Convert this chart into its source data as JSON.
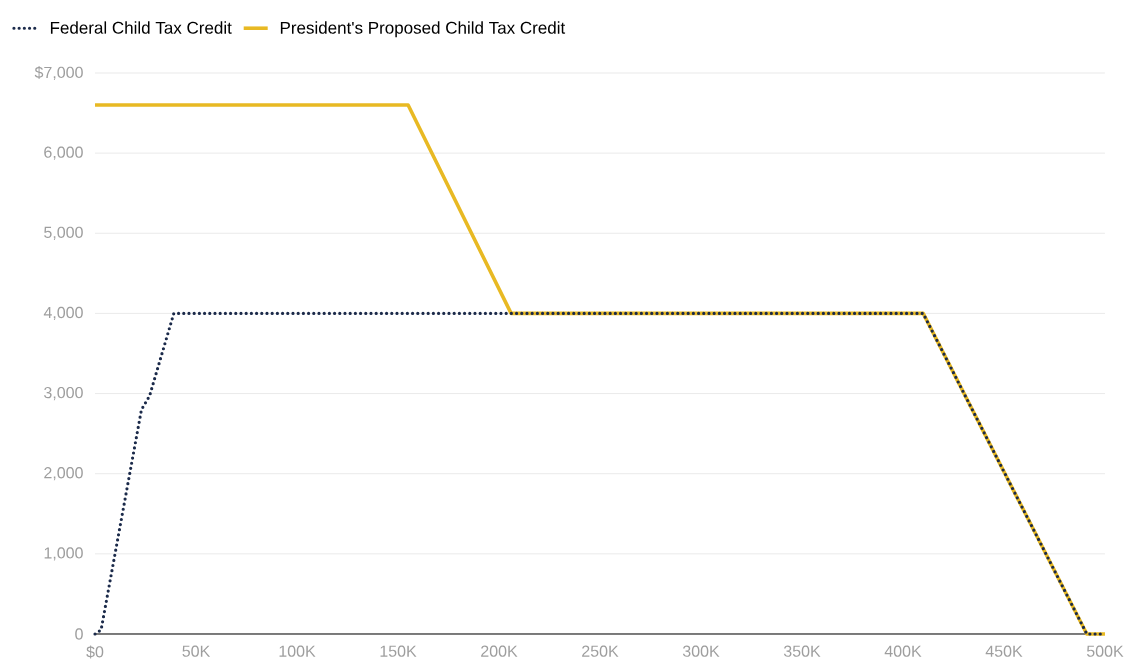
{
  "chart_data": {
    "type": "line",
    "series": [
      {
        "name": "Federal Child Tax Credit",
        "color": "#1b2a4a",
        "line_style": "dotted",
        "x": [
          0,
          3,
          23,
          27,
          39,
          410,
          491,
          500
        ],
        "values": [
          0,
          50,
          2800,
          2970,
          4000,
          4000,
          0,
          0
        ]
      },
      {
        "name": "President's Proposed Child Tax Credit",
        "color": "#e8b923",
        "line_style": "solid",
        "x": [
          0,
          155,
          206,
          410,
          491,
          500
        ],
        "values": [
          6600,
          6600,
          4000,
          4000,
          0,
          0
        ]
      }
    ],
    "xlim": [
      0,
      500
    ],
    "xticks": [
      {
        "value": 0,
        "label": "$0"
      },
      {
        "value": 50,
        "label": "50K"
      },
      {
        "value": 100,
        "label": "100K"
      },
      {
        "value": 150,
        "label": "150K"
      },
      {
        "value": 200,
        "label": "200K"
      },
      {
        "value": 250,
        "label": "250K"
      },
      {
        "value": 300,
        "label": "300K"
      },
      {
        "value": 350,
        "label": "350K"
      },
      {
        "value": 400,
        "label": "400K"
      },
      {
        "value": 450,
        "label": "450K"
      },
      {
        "value": 500,
        "label": "500K"
      }
    ],
    "ylim": [
      0,
      7000
    ],
    "yticks": [
      {
        "value": 0,
        "label": "0"
      },
      {
        "value": 1000,
        "label": "1,000"
      },
      {
        "value": 2000,
        "label": "2,000"
      },
      {
        "value": 3000,
        "label": "3,000"
      },
      {
        "value": 4000,
        "label": "4,000"
      },
      {
        "value": 5000,
        "label": "5,000"
      },
      {
        "value": 6000,
        "label": "6,000"
      },
      {
        "value": 7000,
        "label": "$7,000"
      }
    ],
    "grid": "y",
    "legend": "top left"
  }
}
